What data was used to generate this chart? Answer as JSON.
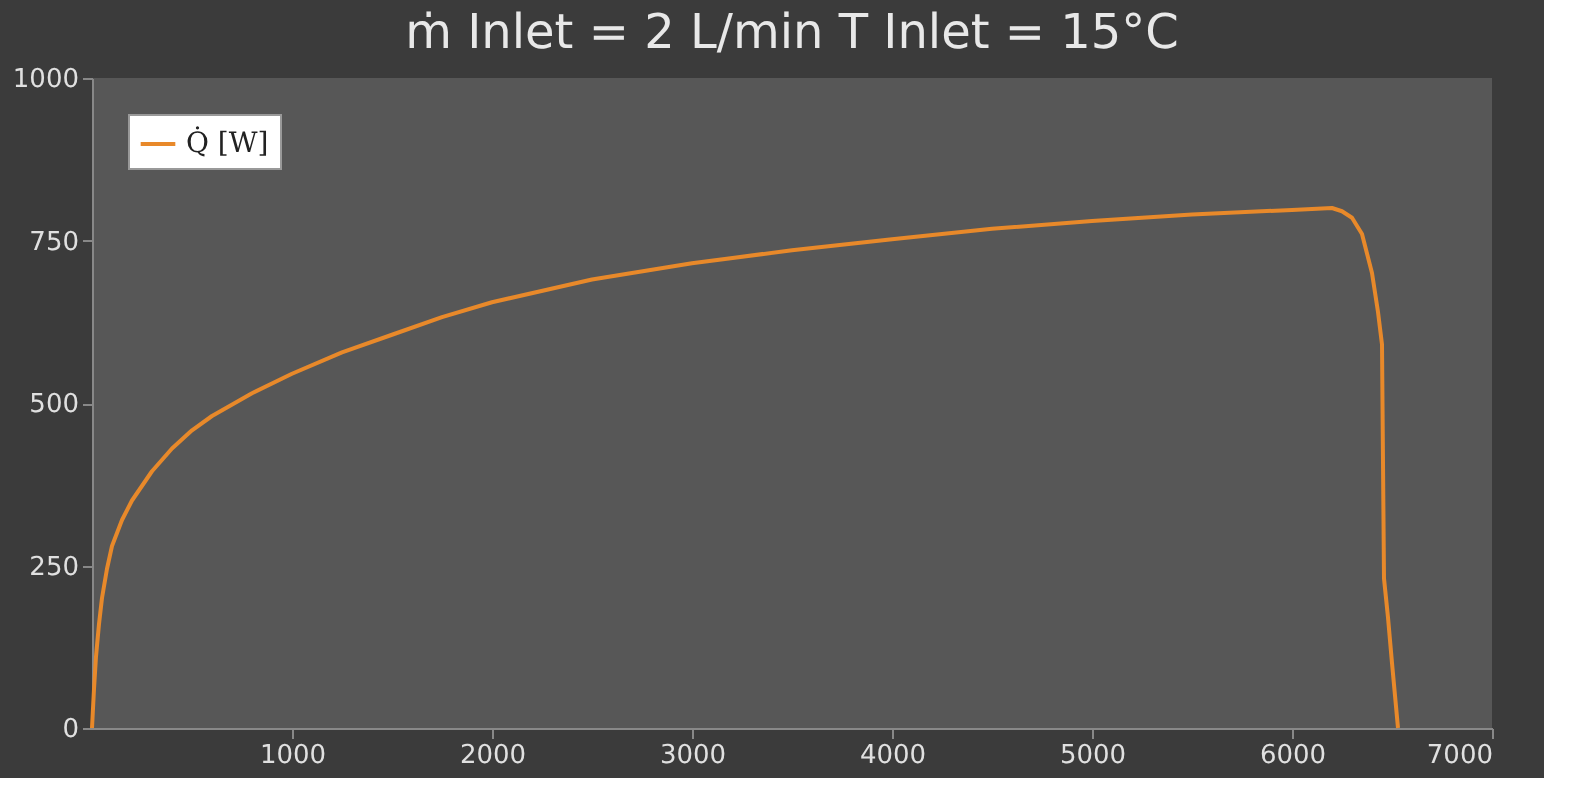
{
  "chart_data": {
    "type": "line",
    "title": "ṁ Inlet = 2 L/min        T Inlet  = 15°C",
    "x": [
      0,
      10,
      20,
      35,
      50,
      75,
      100,
      150,
      200,
      300,
      400,
      500,
      600,
      800,
      1000,
      1250,
      1500,
      1750,
      2000,
      2500,
      3000,
      3500,
      4000,
      4500,
      5000,
      5500,
      6000,
      6200,
      6250,
      6300,
      6350,
      6400,
      6430,
      6450,
      6460,
      6480,
      6500,
      6530
    ],
    "series": [
      {
        "name": "Q̇ [W]",
        "color": "#e8892a",
        "values": [
          0,
          60,
          110,
          160,
          200,
          245,
          280,
          320,
          350,
          395,
          430,
          458,
          480,
          515,
          545,
          578,
          605,
          632,
          655,
          690,
          715,
          735,
          752,
          768,
          780,
          790,
          797,
          800,
          795,
          785,
          760,
          700,
          640,
          590,
          230,
          170,
          100,
          0
        ]
      }
    ],
    "xlim": [
      0,
      7000
    ],
    "xticks": [
      1000,
      2000,
      3000,
      4000,
      5000,
      6000,
      7000
    ],
    "ylim": [
      0,
      1000
    ],
    "yticks": [
      0,
      250,
      500,
      750,
      1000
    ],
    "legend": "top left",
    "grid": false,
    "marker": "none",
    "line_style": "solid"
  }
}
